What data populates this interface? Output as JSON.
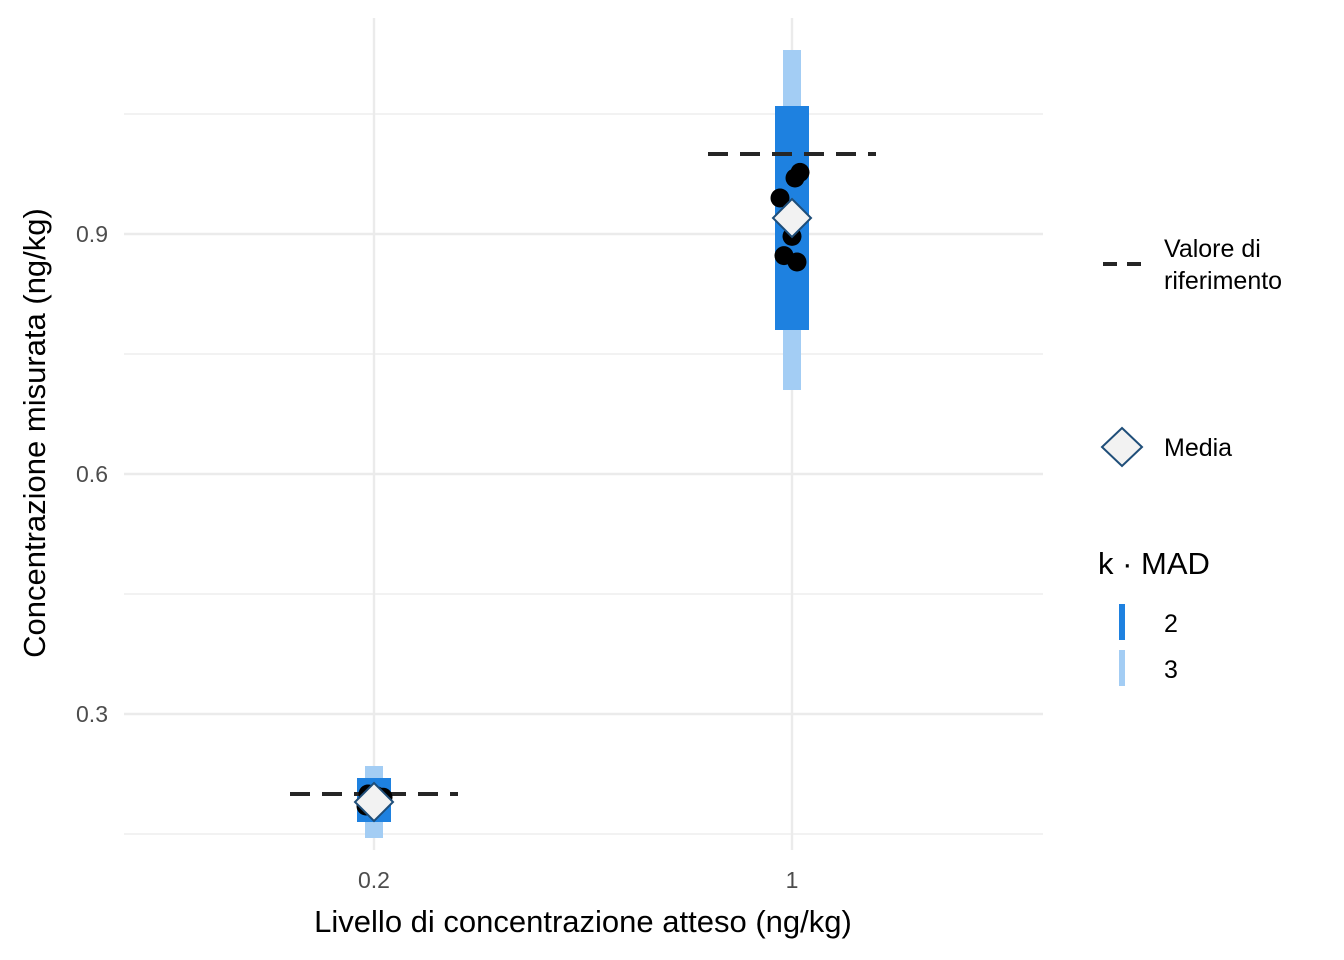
{
  "chart_data": {
    "type": "scatter",
    "title": "",
    "xlabel": "Livello di concentrazione atteso (ng/kg)",
    "ylabel": "Concentrazione misurata (ng/kg)",
    "categories": [
      "0.2",
      "1"
    ],
    "ylim": [
      0.13,
      1.17
    ],
    "y_ticks": [
      0.3,
      0.6,
      0.9
    ],
    "y_tick_labels": [
      "0.3",
      "0.6",
      "0.9"
    ],
    "grid": true,
    "legend_position": "right",
    "colors": {
      "mad_2": "#1e81e0",
      "mad_3": "#a3cdf4",
      "points": "#000000",
      "reference": "#262626",
      "mean_fill": "#f2f2f2",
      "mean_stroke": "#1f4e79",
      "grid": "#ebebeb"
    },
    "groups": [
      {
        "category": "0.2",
        "reference_value": 0.2,
        "mean": 0.19,
        "mad_2_range": [
          0.165,
          0.22
        ],
        "mad_3_range": [
          0.145,
          0.235
        ],
        "points": [
          0.185,
          0.19,
          0.193,
          0.196,
          0.198,
          0.2
        ]
      },
      {
        "category": "1",
        "reference_value": 1.0,
        "mean": 0.92,
        "mad_2_range": [
          0.78,
          1.06
        ],
        "mad_3_range": [
          0.705,
          1.13
        ],
        "points": [
          0.945,
          0.97,
          0.977,
          0.897,
          0.873,
          0.865
        ]
      }
    ],
    "legend": {
      "reference_label": "Valore di riferimento",
      "mean_label": "Media",
      "mad_title": "k · MAD",
      "mad_entries": [
        "2",
        "3"
      ]
    }
  }
}
